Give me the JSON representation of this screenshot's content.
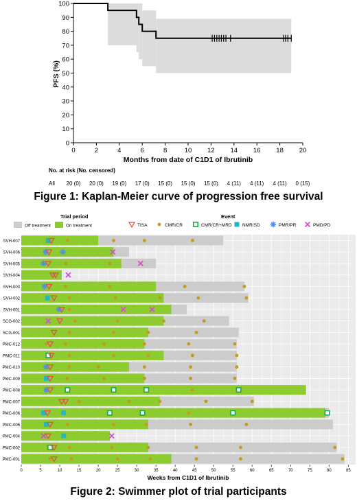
{
  "figure1": {
    "caption": "Figure 1: Kaplan-Meier curve of progression free survival",
    "chart_data": {
      "type": "line",
      "title": "",
      "xlabel": "Months from date of C1D1 of Ibrutinib",
      "ylabel": "PFS (%)",
      "xlim": [
        0,
        20
      ],
      "ylim": [
        0,
        100
      ],
      "xticks": [
        "0",
        "2",
        "4",
        "6",
        "8",
        "10",
        "12",
        "14",
        "16",
        "18",
        "20"
      ],
      "yticks": [
        "0",
        "10",
        "20",
        "30",
        "40",
        "50",
        "60",
        "70",
        "80",
        "90",
        "100"
      ],
      "grid": false,
      "step_x": [
        0,
        3.0,
        5.5,
        5.7,
        6.0,
        7.2,
        19.0
      ],
      "step_y": [
        100,
        95,
        90,
        85,
        80,
        75,
        75
      ],
      "ci_steps": [
        {
          "x0": 3.0,
          "x1": 5.5,
          "lo": 70,
          "hi": 100
        },
        {
          "x0": 5.5,
          "x1": 5.7,
          "lo": 65,
          "hi": 100
        },
        {
          "x0": 5.7,
          "x1": 6.0,
          "lo": 60,
          "hi": 100
        },
        {
          "x0": 6.0,
          "x1": 7.2,
          "lo": 55,
          "hi": 95
        },
        {
          "x0": 7.2,
          "x1": 19.0,
          "lo": 50,
          "hi": 89
        }
      ],
      "censor_x": [
        12.1,
        12.3,
        12.5,
        12.7,
        12.9,
        13.1,
        13.3,
        13.7,
        18.3,
        18.5,
        18.7,
        19.0
      ]
    },
    "risk_table": {
      "header": "No. at risk (No. censored)",
      "row_label": "All",
      "values": [
        "20 (0)",
        "20 (0)",
        "19 (0)",
        "17 (0)",
        "15 (0)",
        "15 (0)",
        "15 (0)",
        "4 (11)",
        "4 (11)",
        "4 (11)",
        "0 (15)"
      ]
    }
  },
  "figure2": {
    "caption": "Figure 2: Swimmer plot of trial participants",
    "legend_trial_title": "Trial period",
    "legend_off": "Off treatment",
    "legend_on": "On treatment",
    "legend_event_title": "Event",
    "colors": {
      "on": "#8ccc2e",
      "off": "#cccccc",
      "tisa": "#e8504a",
      "cmr": "#c49a1c",
      "mrd": "#1aa84e",
      "nmr": "#26b5c4",
      "pmr": "#4f8ff0",
      "pmd": "#d64fd0"
    },
    "chart_data": {
      "type": "bar",
      "title": "",
      "xlabel": "Weeks from C1D1 of Ibrutinib",
      "xlim": [
        0,
        86
      ],
      "xticks": [
        "0",
        "5",
        "10",
        "15",
        "20",
        "25",
        "30",
        "35",
        "40",
        "45",
        "50",
        "55",
        "60",
        "65",
        "70",
        "75",
        "80",
        "85"
      ],
      "event_types": [
        "TISA",
        "CMR/CR",
        "CMR/CR+MRD",
        "NMR/SD",
        "PMR/PR",
        "PMD/PD"
      ],
      "patients": [
        "SVH-007",
        "SVH-006",
        "SVH-005",
        "SVH-004",
        "SVH-003",
        "SVH-002",
        "SVH-001",
        "SCG-002",
        "SCG-001",
        "PMC-012",
        "PMC-011",
        "PMC-010",
        "PMC-009",
        "PMC-008",
        "PMC-007",
        "PMC-006",
        "PMC-005",
        "PMC-004",
        "PMC-002",
        "PMC-001"
      ],
      "on_treatment": [
        20,
        24,
        26,
        10.5,
        35,
        37,
        39,
        37,
        33,
        32,
        37,
        28,
        32,
        74,
        36,
        79,
        33,
        23,
        33,
        39
      ],
      "total": [
        52.5,
        28,
        35,
        10.5,
        58,
        59,
        43,
        54,
        56.5,
        56,
        56,
        56,
        56,
        74,
        60.5,
        80,
        81,
        23,
        82,
        84
      ],
      "events": [
        {
          "p": 0,
          "t": "NMR/SD",
          "w": 7
        },
        {
          "p": 0,
          "t": "TISA",
          "w": 7.8
        },
        {
          "p": 0,
          "t": "CMR/CR",
          "w": 12
        },
        {
          "p": 0,
          "t": "CMR/CR",
          "w": 24
        },
        {
          "p": 0,
          "t": "CMR/CR",
          "w": 32
        },
        {
          "p": 0,
          "t": "CMR/CR",
          "w": 44.5
        },
        {
          "p": 1,
          "t": "PMR/PR",
          "w": 6.3
        },
        {
          "p": 1,
          "t": "TISA",
          "w": 7.2
        },
        {
          "p": 1,
          "t": "PMR/PR",
          "w": 10.8
        },
        {
          "p": 1,
          "t": "PMD/PD",
          "w": 23.8
        },
        {
          "p": 2,
          "t": "PMR/PR",
          "w": 5.8
        },
        {
          "p": 2,
          "t": "TISA",
          "w": 7
        },
        {
          "p": 2,
          "t": "CMR/CR",
          "w": 11.5
        },
        {
          "p": 2,
          "t": "CMR/CR",
          "w": 23
        },
        {
          "p": 2,
          "t": "PMD/PD",
          "w": 31
        },
        {
          "p": 3,
          "t": "TISA",
          "w": 8.2
        },
        {
          "p": 3,
          "t": "TISA",
          "w": 8.9
        },
        {
          "p": 3,
          "t": "PMD/PD",
          "w": 12.2
        },
        {
          "p": 4,
          "t": "PMR/PR",
          "w": 6
        },
        {
          "p": 4,
          "t": "TISA",
          "w": 7.2
        },
        {
          "p": 4,
          "t": "CMR/CR",
          "w": 11.5
        },
        {
          "p": 4,
          "t": "CMR/CR",
          "w": 23
        },
        {
          "p": 4,
          "t": "CMR/CR",
          "w": 42.5
        },
        {
          "p": 4,
          "t": "CMR/CR",
          "w": 58
        },
        {
          "p": 5,
          "t": "NMR/SD",
          "w": 6.8
        },
        {
          "p": 5,
          "t": "TISA",
          "w": 8.5
        },
        {
          "p": 5,
          "t": "CMR/CR",
          "w": 12.5
        },
        {
          "p": 5,
          "t": "CMR/CR",
          "w": 24.5
        },
        {
          "p": 5,
          "t": "CMR/CR",
          "w": 36
        },
        {
          "p": 5,
          "t": "CMR/CR",
          "w": 46
        },
        {
          "p": 5,
          "t": "CMR/CR",
          "w": 58.5
        },
        {
          "p": 6,
          "t": "PMR/PR",
          "w": 9.8
        },
        {
          "p": 6,
          "t": "TISA",
          "w": 10.5
        },
        {
          "p": 6,
          "t": "CMR/CR",
          "w": 12.5
        },
        {
          "p": 6,
          "t": "PMD/PD",
          "w": 26.5
        },
        {
          "p": 6,
          "t": "PMD/PD",
          "w": 34
        },
        {
          "p": 7,
          "t": "PMD/PD",
          "w": 7
        },
        {
          "p": 7,
          "t": "TISA",
          "w": 10
        },
        {
          "p": 7,
          "t": "CMR/CR",
          "w": 14
        },
        {
          "p": 7,
          "t": "CMR/CR",
          "w": 25
        },
        {
          "p": 7,
          "t": "CMR/CR",
          "w": 37
        },
        {
          "p": 7,
          "t": "CMR/CR",
          "w": 47.5
        },
        {
          "p": 8,
          "t": "TISA",
          "w": 8.5
        },
        {
          "p": 8,
          "t": "CMR/CR",
          "w": 12.5
        },
        {
          "p": 8,
          "t": "CMR/CR",
          "w": 24
        },
        {
          "p": 8,
          "t": "CMR/CR",
          "w": 33
        },
        {
          "p": 8,
          "t": "CMR/CR",
          "w": 45.5
        },
        {
          "p": 9,
          "t": "CMR/CR",
          "w": 6.5
        },
        {
          "p": 9,
          "t": "TISA",
          "w": 7.5
        },
        {
          "p": 9,
          "t": "CMR/CR",
          "w": 11.5
        },
        {
          "p": 9,
          "t": "CMR/CR",
          "w": 21.5
        },
        {
          "p": 9,
          "t": "CMR/CR",
          "w": 32
        },
        {
          "p": 9,
          "t": "CMR/CR",
          "w": 43.5
        },
        {
          "p": 9,
          "t": "CMR/CR",
          "w": 55.5
        },
        {
          "p": 10,
          "t": "CMR/CR+MRD",
          "w": 7
        },
        {
          "p": 10,
          "t": "TISA",
          "w": 7.8
        },
        {
          "p": 10,
          "t": "CMR/CR",
          "w": 12.5
        },
        {
          "p": 10,
          "t": "CMR/CR",
          "w": 24
        },
        {
          "p": 10,
          "t": "CMR/CR",
          "w": 33
        },
        {
          "p": 10,
          "t": "CMR/CR",
          "w": 44.5
        },
        {
          "p": 10,
          "t": "CMR/CR",
          "w": 56
        },
        {
          "p": 11,
          "t": "PMR/PR",
          "w": 6.5
        },
        {
          "p": 11,
          "t": "TISA",
          "w": 7.5
        },
        {
          "p": 11,
          "t": "CMR/CR",
          "w": 12.5
        },
        {
          "p": 11,
          "t": "CMR/CR",
          "w": 20
        },
        {
          "p": 11,
          "t": "CMR/CR",
          "w": 32
        },
        {
          "p": 11,
          "t": "CMR/CR",
          "w": 44
        },
        {
          "p": 11,
          "t": "CMR/CR",
          "w": 56
        },
        {
          "p": 12,
          "t": "NMR/SD",
          "w": 6.5
        },
        {
          "p": 12,
          "t": "TISA",
          "w": 7.5
        },
        {
          "p": 12,
          "t": "CMR/CR",
          "w": 12
        },
        {
          "p": 12,
          "t": "CMR/CR",
          "w": 21.5
        },
        {
          "p": 12,
          "t": "CMR/CR",
          "w": 32
        },
        {
          "p": 12,
          "t": "CMR/CR",
          "w": 44
        },
        {
          "p": 12,
          "t": "CMR/CR",
          "w": 55.5
        },
        {
          "p": 13,
          "t": "PMR/PR",
          "w": 6.5
        },
        {
          "p": 13,
          "t": "TISA",
          "w": 7.5
        },
        {
          "p": 13,
          "t": "CMR/CR+MRD",
          "w": 12
        },
        {
          "p": 13,
          "t": "CMR/CR+MRD",
          "w": 24
        },
        {
          "p": 13,
          "t": "CMR/CR+MRD",
          "w": 32.5
        },
        {
          "p": 13,
          "t": "CMR/CR",
          "w": 44.5
        },
        {
          "p": 13,
          "t": "CMR/CR+MRD",
          "w": 56.5
        },
        {
          "p": 14,
          "t": "TISA",
          "w": 10.5
        },
        {
          "p": 14,
          "t": "TISA",
          "w": 11.5
        },
        {
          "p": 14,
          "t": "CMR/CR",
          "w": 15
        },
        {
          "p": 14,
          "t": "CMR/CR",
          "w": 28
        },
        {
          "p": 14,
          "t": "CMR/CR",
          "w": 36
        },
        {
          "p": 14,
          "t": "CMR/CR",
          "w": 48
        },
        {
          "p": 14,
          "t": "CMR/CR",
          "w": 60
        },
        {
          "p": 15,
          "t": "NMR/SD",
          "w": 5.8
        },
        {
          "p": 15,
          "t": "TISA",
          "w": 6.8
        },
        {
          "p": 15,
          "t": "NMR/SD",
          "w": 11
        },
        {
          "p": 15,
          "t": "CMR/CR+MRD",
          "w": 23
        },
        {
          "p": 15,
          "t": "CMR/CR+MRD",
          "w": 31.5
        },
        {
          "p": 15,
          "t": "CMR/CR",
          "w": 43.5
        },
        {
          "p": 15,
          "t": "CMR/CR+MRD",
          "w": 55
        },
        {
          "p": 15,
          "t": "CMR/CR+MRD",
          "w": 79.5
        },
        {
          "p": 16,
          "t": "NMR/SD",
          "w": 6.5
        },
        {
          "p": 16,
          "t": "TISA",
          "w": 7.5
        },
        {
          "p": 16,
          "t": "CMR/CR",
          "w": 12
        },
        {
          "p": 16,
          "t": "CMR/CR",
          "w": 24
        },
        {
          "p": 16,
          "t": "CMR/CR",
          "w": 32.5
        },
        {
          "p": 16,
          "t": "CMR/CR",
          "w": 44
        },
        {
          "p": 16,
          "t": "CMR/CR",
          "w": 58.5
        },
        {
          "p": 17,
          "t": "PMD/PD",
          "w": 5.8
        },
        {
          "p": 17,
          "t": "TISA",
          "w": 7
        },
        {
          "p": 17,
          "t": "NMR/SD",
          "w": 11
        },
        {
          "p": 17,
          "t": "PMD/PD",
          "w": 23.5
        },
        {
          "p": 18,
          "t": "CMR/CR+MRD",
          "w": 7.5
        },
        {
          "p": 18,
          "t": "TISA",
          "w": 8.5
        },
        {
          "p": 18,
          "t": "CMR/CR",
          "w": 12.5
        },
        {
          "p": 18,
          "t": "CMR/CR",
          "w": 23.5
        },
        {
          "p": 18,
          "t": "CMR/CR",
          "w": 33
        },
        {
          "p": 18,
          "t": "CMR/CR",
          "w": 45.5
        },
        {
          "p": 18,
          "t": "CMR/CR",
          "w": 57
        },
        {
          "p": 18,
          "t": "CMR/CR",
          "w": 81.5
        },
        {
          "p": 19,
          "t": "CMR/CR",
          "w": 7.5
        },
        {
          "p": 19,
          "t": "TISA",
          "w": 8.5
        },
        {
          "p": 19,
          "t": "CMR/CR",
          "w": 13
        },
        {
          "p": 19,
          "t": "CMR/CR",
          "w": 25
        },
        {
          "p": 19,
          "t": "CMR/CR",
          "w": 33.5
        },
        {
          "p": 19,
          "t": "CMR/CR",
          "w": 45.5
        },
        {
          "p": 19,
          "t": "CMR/CR",
          "w": 57
        },
        {
          "p": 19,
          "t": "CMR/CR",
          "w": 83.5
        }
      ]
    }
  }
}
